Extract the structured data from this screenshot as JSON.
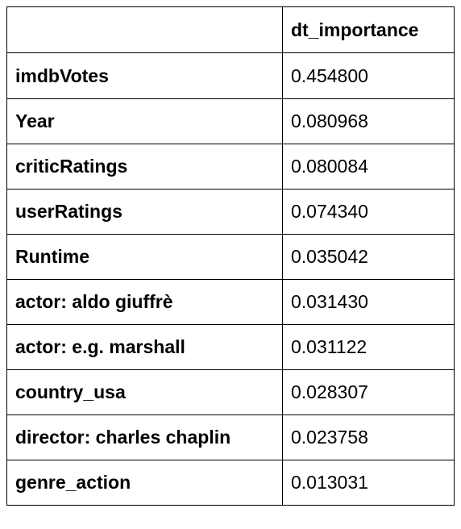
{
  "table": {
    "corner": "",
    "column_header": "dt_importance",
    "rows": [
      {
        "feature": "imdbVotes",
        "value": "0.454800"
      },
      {
        "feature": "Year",
        "value": "0.080968"
      },
      {
        "feature": "criticRatings",
        "value": "0.080084"
      },
      {
        "feature": "userRatings",
        "value": "0.074340"
      },
      {
        "feature": "Runtime",
        "value": "0.035042"
      },
      {
        "feature": "actor: aldo giuffrè",
        "value": "0.031430"
      },
      {
        "feature": "actor: e.g. marshall",
        "value": "0.031122"
      },
      {
        "feature": "country_usa",
        "value": "0.028307"
      },
      {
        "feature": "director: charles chaplin",
        "value": "0.023758"
      },
      {
        "feature": "genre_action",
        "value": "0.013031"
      }
    ]
  }
}
